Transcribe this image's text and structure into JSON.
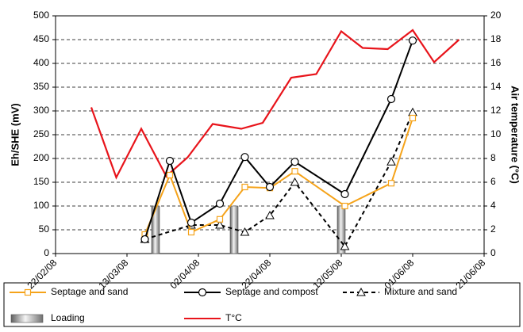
{
  "chart_data": {
    "type": "line",
    "y_label": "Eh/SHE (mV)",
    "y2_label": "Air temperature (°C)",
    "xlim": [
      "2008-02-22",
      "2008-06-21"
    ],
    "xticks": [
      {
        "value": "2008-02-22",
        "label": "22/02/08"
      },
      {
        "value": "2008-03-13",
        "label": "13/03/08"
      },
      {
        "value": "2008-04-02",
        "label": "02/04/08"
      },
      {
        "value": "2008-04-22",
        "label": "22/04/08"
      },
      {
        "value": "2008-05-12",
        "label": "12/05/08"
      },
      {
        "value": "2008-06-01",
        "label": "01/06/08"
      },
      {
        "value": "2008-06-21",
        "label": "21/06/08"
      }
    ],
    "ylim": [
      0,
      500
    ],
    "yticks": [
      0,
      50,
      100,
      150,
      200,
      250,
      300,
      350,
      400,
      450,
      500
    ],
    "y2lim": [
      0,
      20
    ],
    "y2ticks": [
      0,
      2,
      4,
      6,
      8,
      10,
      12,
      14,
      16,
      18,
      20
    ],
    "grid": true,
    "series": [
      {
        "name": "Septage and sand",
        "color": "#f5a31a",
        "marker": "square",
        "dash": false,
        "x": [
          "2008-03-18",
          "2008-03-25",
          "2008-03-31",
          "2008-04-08",
          "2008-04-15",
          "2008-04-22",
          "2008-04-29",
          "2008-05-13",
          "2008-05-26",
          "2008-06-01"
        ],
        "values": [
          40,
          165,
          45,
          72,
          140,
          138,
          173,
          100,
          148,
          285
        ]
      },
      {
        "name": "Septage and compost",
        "color": "#000000",
        "marker": "circle",
        "dash": false,
        "x": [
          "2008-03-18",
          "2008-03-25",
          "2008-03-31",
          "2008-04-08",
          "2008-04-15",
          "2008-04-22",
          "2008-04-29",
          "2008-05-13",
          "2008-05-26",
          "2008-06-01"
        ],
        "values": [
          30,
          195,
          65,
          105,
          203,
          140,
          193,
          125,
          325,
          448
        ]
      },
      {
        "name": "Mixture and sand",
        "color": "#000000",
        "marker": "triangle",
        "dash": true,
        "x": [
          "2008-03-18",
          "2008-03-31",
          "2008-04-08",
          "2008-04-15",
          "2008-04-22",
          "2008-04-29",
          "2008-05-13",
          "2008-05-26",
          "2008-06-01"
        ],
        "values": [
          30,
          60,
          60,
          45,
          80,
          150,
          15,
          193,
          297
        ]
      },
      {
        "name": "Loading",
        "color": "#a0a0a0",
        "marker": "bar",
        "dash": false,
        "x": [
          "2008-03-21",
          "2008-04-12",
          "2008-05-12"
        ],
        "values": [
          100,
          100,
          100
        ]
      },
      {
        "name": "T°C",
        "color": "#e8141b",
        "marker": "none",
        "dash": false,
        "axis": "y2",
        "x": [
          "2008-03-03",
          "2008-03-10",
          "2008-03-17",
          "2008-03-24",
          "2008-03-30",
          "2008-04-06",
          "2008-04-14",
          "2008-04-20",
          "2008-04-28",
          "2008-05-05",
          "2008-05-12",
          "2008-05-18",
          "2008-05-25",
          "2008-06-01",
          "2008-06-07",
          "2008-06-14"
        ],
        "values": [
          12.3,
          6.4,
          10.5,
          6.5,
          8.1,
          10.9,
          10.5,
          11,
          14.8,
          15.1,
          18.7,
          17.3,
          17.2,
          18.8,
          16.1,
          18
        ]
      }
    ]
  }
}
